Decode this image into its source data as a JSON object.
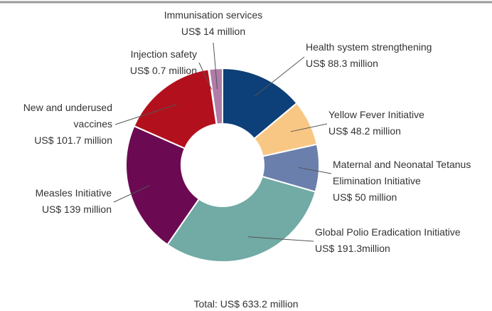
{
  "chart_data": {
    "type": "donut",
    "categories": [
      "Health system strengthening",
      "Yellow Fever Initiative",
      "Maternal and Neonatal Tetanus Elimination Initiative",
      "Global Polio Eradication Initiative",
      "Measles Initiative",
      "New and underused vaccines",
      "Injection safety",
      "Immunisation services"
    ],
    "values": [
      88.3,
      48.2,
      50,
      191.3,
      139,
      101.7,
      0.7,
      14
    ],
    "value_labels": [
      "US$ 88.3 million",
      "US$ 48.2 million",
      "US$ 50 million",
      "US$ 191.3million",
      "US$ 139 million",
      "US$ 101.7 million",
      "US$ 0.7 million",
      "US$ 14 million"
    ],
    "colors": [
      "#0d3f78",
      "#f9c784",
      "#6b7fac",
      "#72aaa5",
      "#6b0a52",
      "#b3101e",
      "#c5d49a",
      "#b07ca8"
    ],
    "annotation": "Total: US$ 633.2 million"
  }
}
